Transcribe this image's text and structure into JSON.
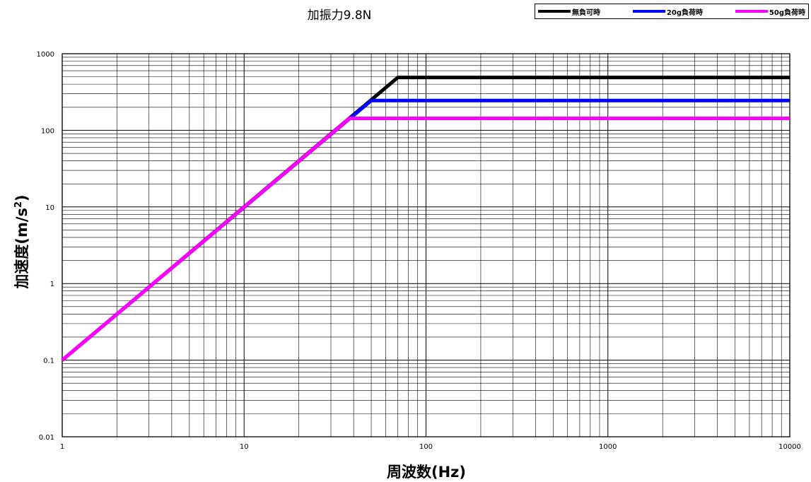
{
  "subtitle": "加振力9.8N",
  "legend": [
    {
      "label": "無負可時",
      "color": "#000000"
    },
    {
      "label": "20g負荷時",
      "color": "#0000ff"
    },
    {
      "label": "50g負荷時",
      "color": "#ff00ff"
    }
  ],
  "chart_data": {
    "type": "line",
    "subtitle": "加振力9.8N",
    "xlabel": "周波数(Hz)",
    "ylabel_main": "加速度(m/s",
    "ylabel_sup": "2",
    "ylabel_tail": ")",
    "xscale": "log",
    "yscale": "log",
    "xlim": [
      1,
      10000
    ],
    "ylim": [
      0.01,
      1000
    ],
    "grid": true,
    "legend_position": "top-right",
    "x_ticks": [
      "1",
      "10",
      "100",
      "1000",
      "10000"
    ],
    "y_ticks": [
      "0.01",
      "0.1",
      "1",
      "10",
      "100",
      "1000"
    ],
    "series": [
      {
        "name": "無負可時",
        "color": "#000000",
        "x": [
          1,
          70,
          10000
        ],
        "y": [
          0.1,
          490,
          490
        ]
      },
      {
        "name": "20g負荷時",
        "color": "#0000ff",
        "x": [
          1,
          50,
          10000
        ],
        "y": [
          0.1,
          245,
          245
        ]
      },
      {
        "name": "50g負荷時",
        "color": "#ff00ff",
        "x": [
          1,
          38,
          10000
        ],
        "y": [
          0.1,
          143,
          143
        ]
      }
    ]
  }
}
